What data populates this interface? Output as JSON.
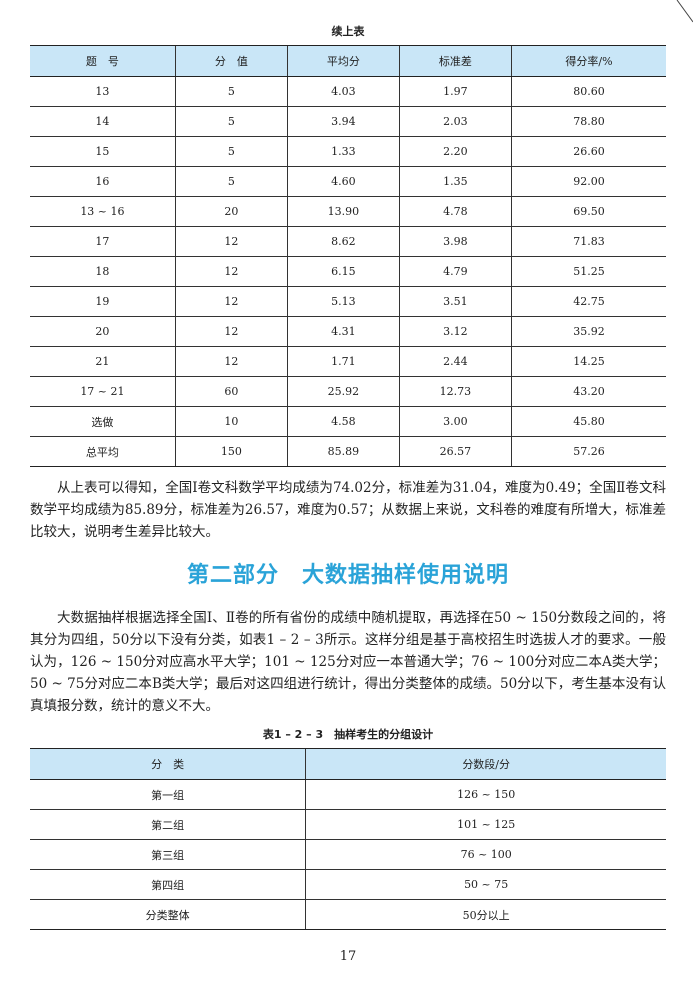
{
  "table1": {
    "caption": "续上表",
    "headers": [
      "题　号",
      "分　值",
      "平均分",
      "标准差",
      "得分率/%"
    ],
    "rows": [
      [
        "13",
        "5",
        "4.03",
        "1.97",
        "80.60"
      ],
      [
        "14",
        "5",
        "3.94",
        "2.03",
        "78.80"
      ],
      [
        "15",
        "5",
        "1.33",
        "2.20",
        "26.60"
      ],
      [
        "16",
        "5",
        "4.60",
        "1.35",
        "92.00"
      ],
      [
        "13 ~ 16",
        "20",
        "13.90",
        "4.78",
        "69.50"
      ],
      [
        "17",
        "12",
        "8.62",
        "3.98",
        "71.83"
      ],
      [
        "18",
        "12",
        "6.15",
        "4.79",
        "51.25"
      ],
      [
        "19",
        "12",
        "5.13",
        "3.51",
        "42.75"
      ],
      [
        "20",
        "12",
        "4.31",
        "3.12",
        "35.92"
      ],
      [
        "21",
        "12",
        "1.71",
        "2.44",
        "14.25"
      ],
      [
        "17 ~ 21",
        "60",
        "25.92",
        "12.73",
        "43.20"
      ],
      [
        "选做",
        "10",
        "4.58",
        "3.00",
        "45.80"
      ],
      [
        "总平均",
        "150",
        "85.89",
        "26.57",
        "57.26"
      ]
    ]
  },
  "paragraph1": "从上表可以得知，全国Ⅰ卷文科数学平均成绩为74.02分，标准差为31.04，难度为0.49；全国Ⅱ卷文科数学平均成绩为85.89分，标准差为26.57，难度为0.57；从数据上来说，文科卷的难度有所增大，标准差比较大，说明考生差异比较大。",
  "section_title": "第二部分　大数据抽样使用说明",
  "paragraph2": "大数据抽样根据选择全国Ⅰ、Ⅱ卷的所有省份的成绩中随机提取，再选择在50 ~ 150分数段之间的，将其分为四组，50分以下没有分类，如表1 – 2 – 3所示。这样分组是基于高校招生时选拔人才的要求。一般认为，126 ~ 150分对应高水平大学；101 ~ 125分对应一本普通大学；76 ~ 100分对应二本A类大学；50 ~ 75分对应二本B类大学；最后对这四组进行统计，得出分类整体的成绩。50分以下，考生基本没有认真填报分数，统计的意义不大。",
  "table2": {
    "caption": "表1 – 2 – 3　抽样考生的分组设计",
    "headers": [
      "分　类",
      "分数段/分"
    ],
    "rows": [
      [
        "第一组",
        "126 ~ 150"
      ],
      [
        "第二组",
        "101 ~ 125"
      ],
      [
        "第三组",
        "76 ~ 100"
      ],
      [
        "第四组",
        "50 ~ 75"
      ],
      [
        "分类整体",
        "50分以上"
      ]
    ]
  },
  "page_number": "17",
  "colors": {
    "header_bg": "#c9e6f7",
    "title": "#2aa3d8"
  }
}
